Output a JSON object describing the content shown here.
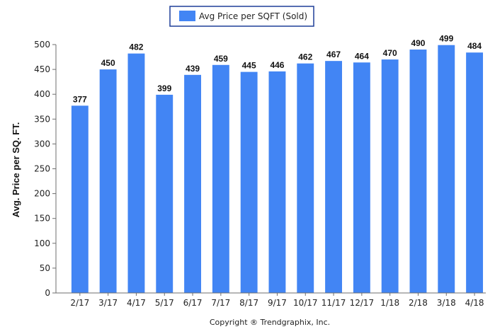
{
  "chart_data": {
    "type": "bar",
    "legend": {
      "label": "Avg Price per SQFT (Sold)",
      "placement": "top-center"
    },
    "ylabel": "Avg. Price per SQ. FT.",
    "xlabel": "",
    "ylim": [
      0,
      500
    ],
    "ytick_step": 50,
    "y_ticks": [
      "0",
      "50",
      "100",
      "150",
      "200",
      "250",
      "300",
      "350",
      "400",
      "450",
      "500"
    ],
    "categories": [
      "2/17",
      "3/17",
      "4/17",
      "5/17",
      "6/17",
      "7/17",
      "8/17",
      "9/17",
      "10/17",
      "11/17",
      "12/17",
      "1/18",
      "2/18",
      "3/18",
      "4/18"
    ],
    "series": [
      {
        "name": "Avg Price per SQFT (Sold)",
        "values": [
          377,
          450,
          482,
          399,
          439,
          459,
          445,
          446,
          462,
          467,
          464,
          470,
          490,
          499,
          484
        ],
        "color": "#4285f4"
      }
    ],
    "data_labels": true,
    "grid": false
  },
  "footer": {
    "copyright": "Copyright ® Trendgraphix, Inc."
  }
}
